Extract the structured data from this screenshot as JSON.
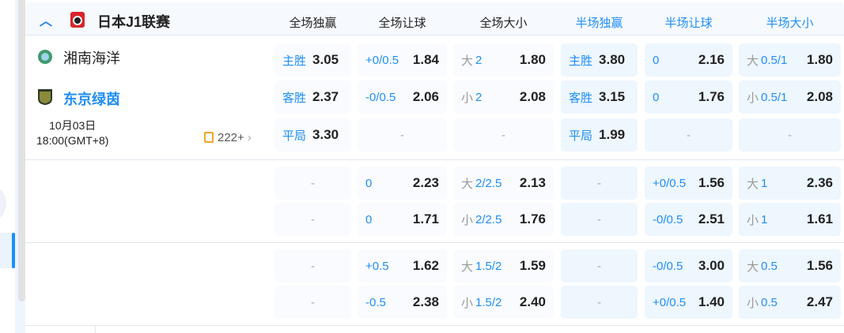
{
  "league": {
    "name": "日本J1联赛",
    "collapse_icon": "chevron-up-icon",
    "logo_icon": "j-league-logo"
  },
  "columns": [
    "全场独赢",
    "全场让球",
    "全场大小",
    "半场独赢",
    "半场让球",
    "半场大小"
  ],
  "column_colors": {
    "full_time": "#222222",
    "half_time": "#1f8ef5"
  },
  "match": {
    "home": "湘南海洋",
    "away": "东京绿茵",
    "date": "10月03日",
    "time": "18:00(GMT+8)",
    "more_count": "222+"
  },
  "rows": [
    [
      {
        "l": "主胜",
        "v": "3.05",
        "wl": 1
      },
      {
        "l": "+0/0.5",
        "v": "1.84"
      },
      {
        "p": "大",
        "l": "2",
        "v": "1.80"
      },
      {
        "l": "主胜",
        "v": "3.80",
        "wl": 1
      },
      {
        "l": "0",
        "v": "2.16"
      },
      {
        "p": "大",
        "l": "0.5/1",
        "v": "1.80"
      }
    ],
    [
      {
        "l": "客胜",
        "v": "2.37",
        "wl": 1
      },
      {
        "l": "-0/0.5",
        "v": "2.06"
      },
      {
        "p": "小",
        "l": "2",
        "v": "2.08"
      },
      {
        "l": "客胜",
        "v": "3.15",
        "wl": 1
      },
      {
        "l": "0",
        "v": "1.76"
      },
      {
        "p": "小",
        "l": "0.5/1",
        "v": "2.08"
      }
    ],
    [
      {
        "l": "平局",
        "v": "3.30",
        "wl": 1
      },
      {
        "e": "-"
      },
      {
        "e": "-"
      },
      {
        "l": "平局",
        "v": "1.99",
        "wl": 1
      },
      {
        "e": "-"
      },
      {
        "e": "-"
      }
    ],
    [
      {
        "e": "-"
      },
      {
        "l": "0",
        "v": "2.23"
      },
      {
        "p": "大",
        "l": "2/2.5",
        "v": "2.13"
      },
      {
        "e": "-"
      },
      {
        "l": "+0/0.5",
        "v": "1.56"
      },
      {
        "p": "大",
        "l": "1",
        "v": "2.36"
      }
    ],
    [
      {
        "e": "-"
      },
      {
        "l": "0",
        "v": "1.71"
      },
      {
        "p": "小",
        "l": "2/2.5",
        "v": "1.76"
      },
      {
        "e": "-"
      },
      {
        "l": "-0/0.5",
        "v": "2.51"
      },
      {
        "p": "小",
        "l": "1",
        "v": "1.61"
      }
    ],
    [
      {
        "e": "-"
      },
      {
        "l": "+0.5",
        "v": "1.62"
      },
      {
        "p": "大",
        "l": "1.5/2",
        "v": "1.59"
      },
      {
        "e": "-"
      },
      {
        "l": "-0/0.5",
        "v": "3.00"
      },
      {
        "p": "大",
        "l": "0.5",
        "v": "1.56"
      }
    ],
    [
      {
        "e": "-"
      },
      {
        "l": "-0.5",
        "v": "2.38"
      },
      {
        "p": "小",
        "l": "1.5/2",
        "v": "2.40"
      },
      {
        "e": "-"
      },
      {
        "l": "+0/0.5",
        "v": "1.40"
      },
      {
        "p": "小",
        "l": "0.5",
        "v": "2.47"
      }
    ]
  ]
}
